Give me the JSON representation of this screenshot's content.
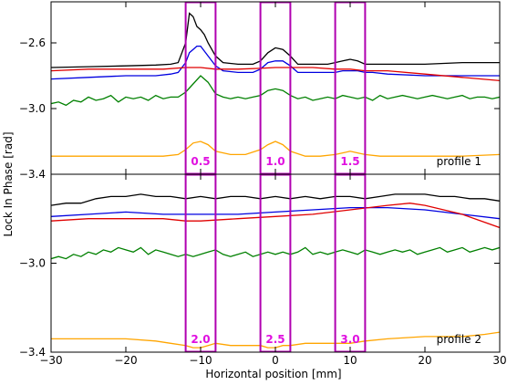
{
  "chart_data": {
    "type": "line",
    "xlabel": "Horizontal position [mm]",
    "ylabel": "Lock In Phase [rad]",
    "xlim": [
      -30,
      30
    ],
    "xticks": [
      -30,
      -20,
      -10,
      0,
      10,
      20,
      30
    ],
    "grid": false,
    "box_color": "#b000b0",
    "box_label_color": "#e010e0",
    "panels": [
      {
        "label": "profile 1",
        "ylim": [
          -3.4,
          -2.35
        ],
        "yticks": [
          -2.6,
          -3.0,
          -3.4
        ],
        "yticklabels": [
          "−2.6",
          "−3.0",
          "−3.4"
        ],
        "boxes": [
          {
            "x0": -12,
            "x1": -8,
            "label": "0.5"
          },
          {
            "x0": -2,
            "x1": 2,
            "label": "1.0"
          },
          {
            "x0": 8,
            "x1": 12,
            "label": "1.5"
          }
        ],
        "series": [
          {
            "color": "#000000",
            "x": [
              -30,
              -25,
              -20,
              -16,
              -14,
              -13,
              -12,
              -11.5,
              -11,
              -10.5,
              -10,
              -9.5,
              -9,
              -8,
              -7,
              -5,
              -3,
              -2,
              -1,
              0,
              1,
              2,
              3,
              5,
              7,
              8,
              9,
              10,
              11,
              12,
              13,
              15,
              20,
              25,
              30
            ],
            "y": [
              -2.75,
              -2.745,
              -2.74,
              -2.735,
              -2.73,
              -2.72,
              -2.6,
              -2.42,
              -2.44,
              -2.5,
              -2.52,
              -2.55,
              -2.6,
              -2.68,
              -2.72,
              -2.73,
              -2.73,
              -2.71,
              -2.66,
              -2.63,
              -2.64,
              -2.68,
              -2.73,
              -2.73,
              -2.73,
              -2.72,
              -2.71,
              -2.7,
              -2.71,
              -2.73,
              -2.73,
              -2.73,
              -2.73,
              -2.72,
              -2.72
            ]
          },
          {
            "color": "#0000e0",
            "x": [
              -30,
              -25,
              -20,
              -16,
              -14,
              -13,
              -12,
              -11.5,
              -11,
              -10.5,
              -10,
              -9,
              -8,
              -7,
              -5,
              -3,
              -2,
              -1,
              0,
              1,
              2,
              3,
              5,
              7,
              8,
              9,
              10,
              11,
              12,
              13,
              15,
              20,
              25,
              30
            ],
            "y": [
              -2.82,
              -2.81,
              -2.8,
              -2.8,
              -2.79,
              -2.78,
              -2.72,
              -2.66,
              -2.64,
              -2.62,
              -2.62,
              -2.68,
              -2.74,
              -2.77,
              -2.78,
              -2.78,
              -2.76,
              -2.72,
              -2.71,
              -2.71,
              -2.74,
              -2.78,
              -2.78,
              -2.78,
              -2.78,
              -2.77,
              -2.77,
              -2.77,
              -2.78,
              -2.78,
              -2.79,
              -2.8,
              -2.8,
              -2.8
            ]
          },
          {
            "color": "#e00000",
            "x": [
              -30,
              -25,
              -20,
              -15,
              -12,
              -10,
              -8,
              -5,
              -2,
              0,
              2,
              5,
              8,
              10,
              12,
              15,
              20,
              25,
              30
            ],
            "y": [
              -2.77,
              -2.76,
              -2.76,
              -2.76,
              -2.75,
              -2.75,
              -2.76,
              -2.76,
              -2.755,
              -2.75,
              -2.75,
              -2.75,
              -2.76,
              -2.76,
              -2.77,
              -2.77,
              -2.79,
              -2.81,
              -2.83
            ]
          },
          {
            "color": "#008000",
            "x": [
              -30,
              -29,
              -28,
              -27,
              -26,
              -25,
              -24,
              -23,
              -22,
              -21,
              -20,
              -19,
              -18,
              -17,
              -16,
              -15,
              -14,
              -13,
              -12,
              -11,
              -10,
              -9,
              -8,
              -7,
              -6,
              -5,
              -4,
              -3,
              -2,
              -1,
              0,
              1,
              2,
              3,
              4,
              5,
              6,
              7,
              8,
              9,
              10,
              11,
              12,
              13,
              14,
              15,
              16,
              17,
              18,
              19,
              20,
              21,
              22,
              23,
              24,
              25,
              26,
              27,
              28,
              29,
              30
            ],
            "y": [
              -2.97,
              -2.96,
              -2.98,
              -2.95,
              -2.96,
              -2.93,
              -2.95,
              -2.94,
              -2.92,
              -2.96,
              -2.93,
              -2.94,
              -2.93,
              -2.95,
              -2.92,
              -2.94,
              -2.93,
              -2.93,
              -2.9,
              -2.85,
              -2.8,
              -2.84,
              -2.91,
              -2.93,
              -2.94,
              -2.93,
              -2.94,
              -2.93,
              -2.92,
              -2.89,
              -2.88,
              -2.89,
              -2.92,
              -2.94,
              -2.93,
              -2.95,
              -2.94,
              -2.93,
              -2.94,
              -2.92,
              -2.93,
              -2.94,
              -2.93,
              -2.95,
              -2.92,
              -2.94,
              -2.93,
              -2.92,
              -2.93,
              -2.94,
              -2.93,
              -2.92,
              -2.93,
              -2.94,
              -2.93,
              -2.92,
              -2.94,
              -2.93,
              -2.93,
              -2.94,
              -2.93
            ]
          },
          {
            "color": "#ffa500",
            "x": [
              -30,
              -25,
              -20,
              -15,
              -13,
              -12,
              -11,
              -10,
              -9,
              -8,
              -6,
              -4,
              -2,
              -1,
              0,
              1,
              2,
              4,
              6,
              8,
              9,
              10,
              11,
              12,
              14,
              20,
              25,
              30
            ],
            "y": [
              -3.29,
              -3.29,
              -3.29,
              -3.29,
              -3.28,
              -3.25,
              -3.21,
              -3.2,
              -3.22,
              -3.26,
              -3.28,
              -3.28,
              -3.25,
              -3.22,
              -3.2,
              -3.22,
              -3.26,
              -3.29,
              -3.29,
              -3.28,
              -3.27,
              -3.26,
              -3.27,
              -3.28,
              -3.29,
              -3.29,
              -3.29,
              -3.28
            ]
          }
        ]
      },
      {
        "label": "profile 2",
        "ylim": [
          -3.4,
          -2.6
        ],
        "yticks": [
          -3.0,
          -3.4
        ],
        "yticklabels": [
          "−3.0",
          "−3.4"
        ],
        "boxes": [
          {
            "x0": -12,
            "x1": -8,
            "label": "2.0"
          },
          {
            "x0": -2,
            "x1": 2,
            "label": "2.5"
          },
          {
            "x0": 8,
            "x1": 12,
            "label": "3.0"
          }
        ],
        "series": [
          {
            "color": "#000000",
            "x": [
              -30,
              -28,
              -26,
              -24,
              -22,
              -20,
              -18,
              -16,
              -14,
              -12,
              -10,
              -8,
              -6,
              -4,
              -2,
              0,
              2,
              4,
              6,
              8,
              10,
              12,
              14,
              16,
              18,
              20,
              22,
              24,
              26,
              28,
              30
            ],
            "y": [
              -2.74,
              -2.73,
              -2.73,
              -2.71,
              -2.7,
              -2.7,
              -2.69,
              -2.7,
              -2.7,
              -2.71,
              -2.7,
              -2.71,
              -2.7,
              -2.7,
              -2.71,
              -2.7,
              -2.71,
              -2.7,
              -2.71,
              -2.7,
              -2.7,
              -2.71,
              -2.7,
              -2.69,
              -2.69,
              -2.69,
              -2.7,
              -2.7,
              -2.71,
              -2.71,
              -2.72
            ]
          },
          {
            "color": "#0000e0",
            "x": [
              -30,
              -25,
              -20,
              -15,
              -12,
              -10,
              -5,
              0,
              5,
              10,
              15,
              20,
              25,
              30
            ],
            "y": [
              -2.79,
              -2.78,
              -2.77,
              -2.78,
              -2.78,
              -2.78,
              -2.78,
              -2.77,
              -2.76,
              -2.75,
              -2.75,
              -2.76,
              -2.78,
              -2.8
            ]
          },
          {
            "color": "#e00000",
            "x": [
              -30,
              -25,
              -20,
              -15,
              -12,
              -10,
              -5,
              0,
              5,
              10,
              15,
              18,
              20,
              25,
              30
            ],
            "y": [
              -2.81,
              -2.8,
              -2.8,
              -2.8,
              -2.81,
              -2.81,
              -2.8,
              -2.79,
              -2.78,
              -2.76,
              -2.74,
              -2.73,
              -2.74,
              -2.78,
              -2.84
            ]
          },
          {
            "color": "#008000",
            "x": [
              -30,
              -29,
              -28,
              -27,
              -26,
              -25,
              -24,
              -23,
              -22,
              -21,
              -20,
              -19,
              -18,
              -17,
              -16,
              -15,
              -14,
              -13,
              -12,
              -11,
              -10,
              -9,
              -8,
              -7,
              -6,
              -5,
              -4,
              -3,
              -2,
              -1,
              0,
              1,
              2,
              3,
              4,
              5,
              6,
              7,
              8,
              9,
              10,
              11,
              12,
              13,
              14,
              15,
              16,
              17,
              18,
              19,
              20,
              21,
              22,
              23,
              24,
              25,
              26,
              27,
              28,
              29,
              30
            ],
            "y": [
              -2.98,
              -2.97,
              -2.98,
              -2.96,
              -2.97,
              -2.95,
              -2.96,
              -2.94,
              -2.95,
              -2.93,
              -2.94,
              -2.95,
              -2.93,
              -2.96,
              -2.94,
              -2.95,
              -2.96,
              -2.97,
              -2.96,
              -2.97,
              -2.96,
              -2.95,
              -2.94,
              -2.96,
              -2.97,
              -2.96,
              -2.95,
              -2.97,
              -2.96,
              -2.95,
              -2.96,
              -2.95,
              -2.96,
              -2.95,
              -2.93,
              -2.96,
              -2.95,
              -2.96,
              -2.95,
              -2.94,
              -2.95,
              -2.96,
              -2.94,
              -2.95,
              -2.96,
              -2.95,
              -2.94,
              -2.95,
              -2.94,
              -2.96,
              -2.95,
              -2.94,
              -2.93,
              -2.95,
              -2.94,
              -2.93,
              -2.95,
              -2.94,
              -2.93,
              -2.94,
              -2.93
            ]
          },
          {
            "color": "#ffa500",
            "x": [
              -30,
              -25,
              -20,
              -16,
              -14,
              -12,
              -11,
              -10,
              -9,
              -8,
              -6,
              -4,
              -2,
              -1,
              0,
              1,
              2,
              4,
              6,
              8,
              10,
              12,
              15,
              20,
              25,
              28,
              30
            ],
            "y": [
              -3.34,
              -3.34,
              -3.34,
              -3.35,
              -3.36,
              -3.37,
              -3.38,
              -3.38,
              -3.37,
              -3.36,
              -3.37,
              -3.37,
              -3.37,
              -3.38,
              -3.38,
              -3.37,
              -3.37,
              -3.36,
              -3.36,
              -3.36,
              -3.36,
              -3.35,
              -3.34,
              -3.33,
              -3.33,
              -3.32,
              -3.31
            ]
          }
        ]
      }
    ]
  }
}
